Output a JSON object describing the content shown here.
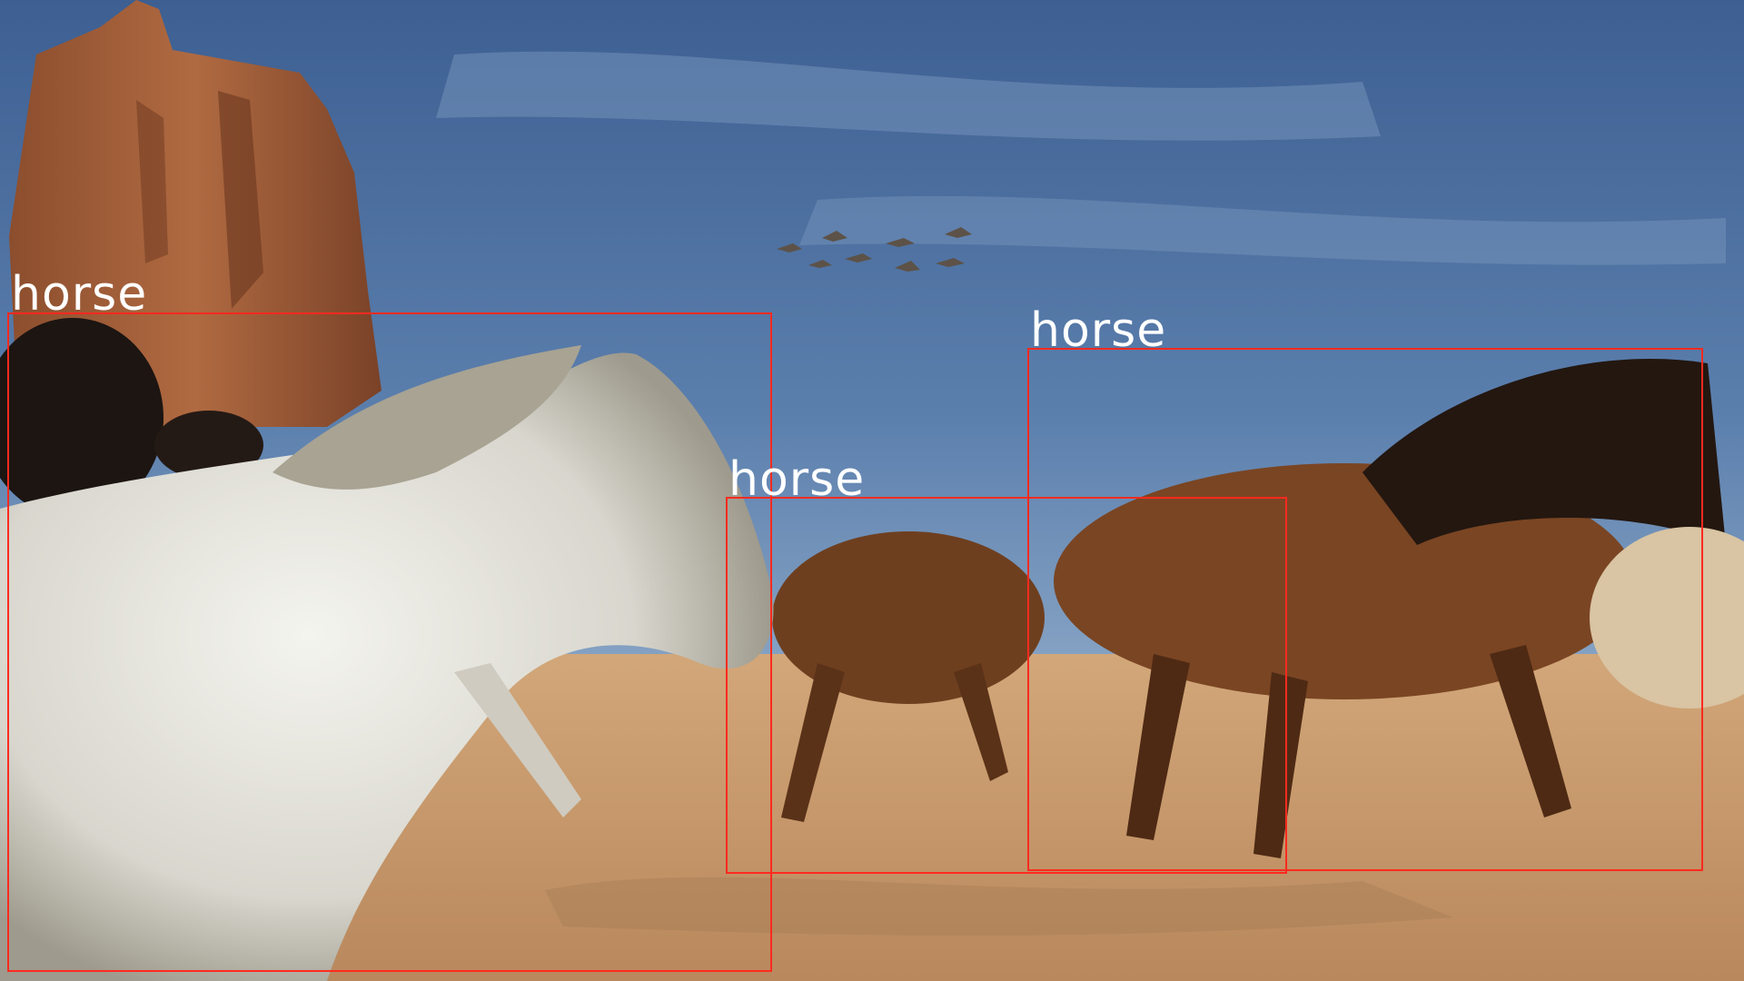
{
  "detections": [
    {
      "label": "horse"
    },
    {
      "label": "horse"
    },
    {
      "label": "horse"
    }
  ],
  "colors": {
    "box": "#ff2a1f",
    "label_text": "#ffffff",
    "sky": "#4d6f9e",
    "sand": "#c89a6c",
    "butte": "#9a5a37"
  }
}
